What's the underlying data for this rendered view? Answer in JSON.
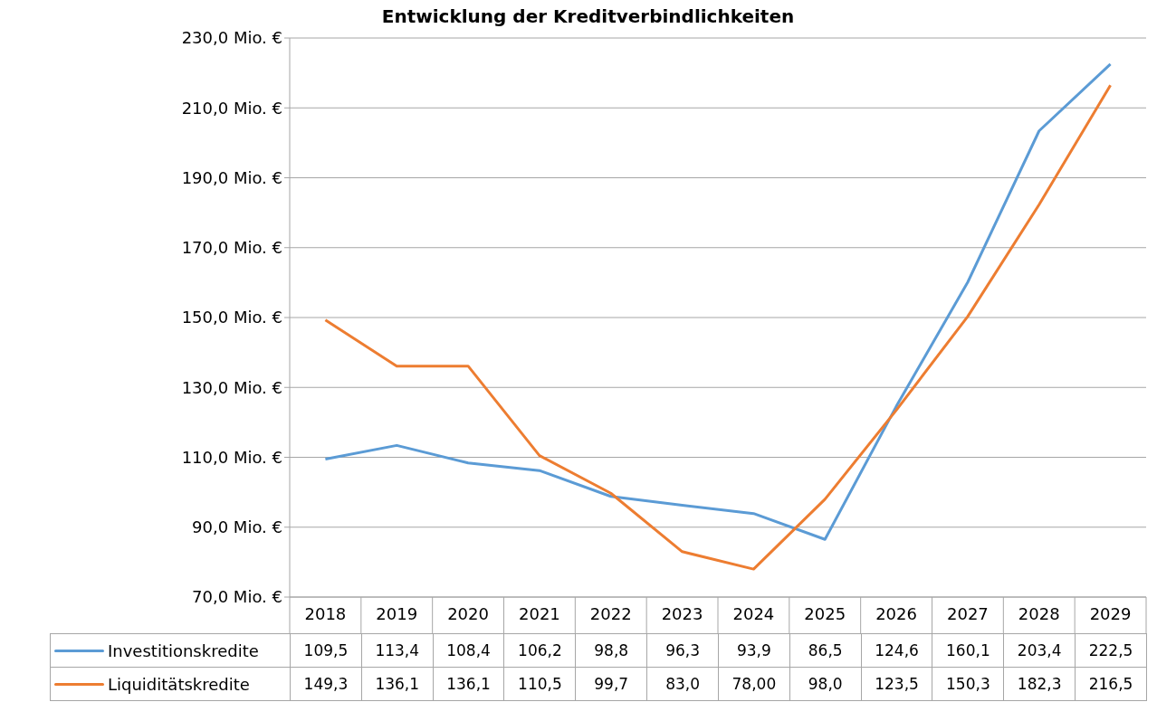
{
  "chart_data": {
    "type": "line",
    "title": "Entwicklung der Kreditverbindlichkeiten",
    "categories": [
      "2018",
      "2019",
      "2020",
      "2021",
      "2022",
      "2023",
      "2024",
      "2025",
      "2026",
      "2027",
      "2028",
      "2029"
    ],
    "series": [
      {
        "name": "Investitionskredite",
        "color": "#5b9bd5",
        "values": [
          109.5,
          113.4,
          108.4,
          106.2,
          98.8,
          96.3,
          93.9,
          86.5,
          124.6,
          160.1,
          203.4,
          222.5
        ],
        "value_labels": [
          "109,5",
          "113,4",
          "108,4",
          "106,2",
          "98,8",
          "96,3",
          "93,9",
          "86,5",
          "124,6",
          "160,1",
          "203,4",
          "222,5"
        ]
      },
      {
        "name": "Liquiditätskredite",
        "color": "#ed7d31",
        "values": [
          149.3,
          136.1,
          136.1,
          110.5,
          99.7,
          83.0,
          78.0,
          98.0,
          123.5,
          150.3,
          182.3,
          216.5
        ],
        "value_labels": [
          "149,3",
          "136,1",
          "136,1",
          "110,5",
          "99,7",
          "83,0",
          "78,00",
          "98,0",
          "123,5",
          "150,3",
          "182,3",
          "216,5"
        ]
      }
    ],
    "ylim": [
      70,
      230
    ],
    "yticks": [
      {
        "value": 70,
        "label": "70,0 Mio. €"
      },
      {
        "value": 90,
        "label": "90,0 Mio. €"
      },
      {
        "value": 110,
        "label": "110,0 Mio. €"
      },
      {
        "value": 130,
        "label": "130,0 Mio. €"
      },
      {
        "value": 150,
        "label": "150,0 Mio. €"
      },
      {
        "value": 170,
        "label": "170,0 Mio. €"
      },
      {
        "value": 190,
        "label": "190,0 Mio. €"
      },
      {
        "value": 210,
        "label": "210,0 Mio. €"
      },
      {
        "value": 230,
        "label": "230,0 Mio. €"
      }
    ],
    "grid": "y",
    "legend": "bottom",
    "marker": "none",
    "line_style": "solid"
  }
}
